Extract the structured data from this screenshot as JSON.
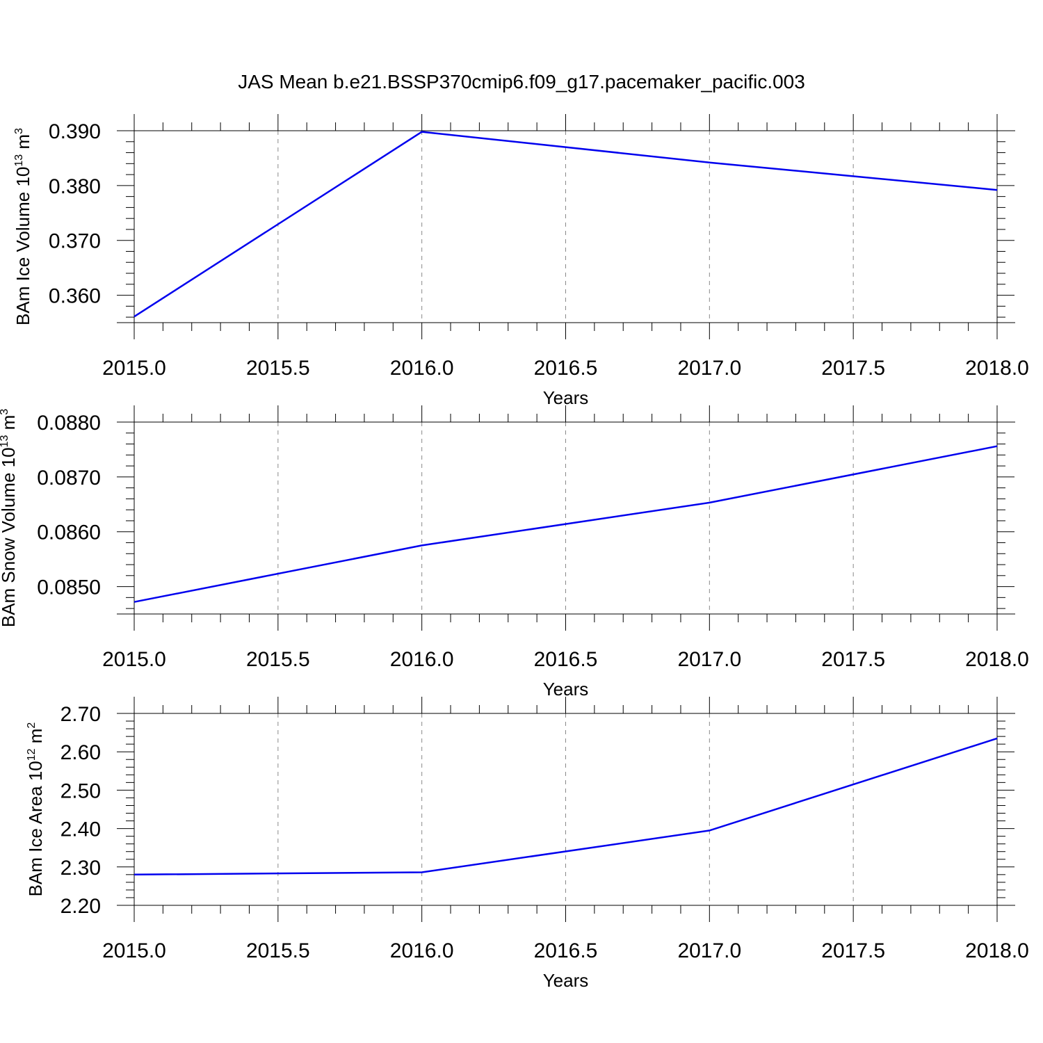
{
  "figure_title": "JAS Mean b.e21.BSSP370cmip6.f09_g17.pacemaker_pacific.003",
  "line_color": "#0000ee",
  "chart_data": [
    {
      "type": "line",
      "xlabel": "Years",
      "ylabel": {
        "text": "BAm Ice Volume 10",
        "exponent": "13",
        "unit": " m",
        "unit_exponent": "3"
      },
      "x": [
        2015,
        2016,
        2017,
        2018
      ],
      "series": [
        {
          "values": [
            0.3561,
            0.3898,
            0.3842,
            0.3792
          ]
        }
      ],
      "xlim": [
        2015,
        2018
      ],
      "ylim": [
        0.355,
        0.393
      ],
      "xticks": [
        "2015.0",
        "2015.5",
        "2016.0",
        "2016.5",
        "2017.0",
        "2017.5",
        "2018.0"
      ],
      "yticks": [
        "0.360",
        "0.370",
        "0.380",
        "0.390"
      ],
      "grid": "vertical dashed at major x ticks"
    },
    {
      "type": "line",
      "xlabel": "Years",
      "ylabel": {
        "text": "BAm Snow Volume 10",
        "exponent": "13",
        "unit": " m",
        "unit_exponent": "3"
      },
      "x": [
        2015,
        2016,
        2017,
        2018
      ],
      "series": [
        {
          "values": [
            0.08472,
            0.08575,
            0.08653,
            0.08756
          ]
        }
      ],
      "xlim": [
        2015,
        2018
      ],
      "ylim": [
        0.0845,
        0.0883
      ],
      "xticks": [
        "2015.0",
        "2015.5",
        "2016.0",
        "2016.5",
        "2017.0",
        "2017.5",
        "2018.0"
      ],
      "yticks": [
        "0.0850",
        "0.0860",
        "0.0870",
        "0.0880"
      ],
      "grid": "vertical dashed at major x ticks"
    },
    {
      "type": "line",
      "xlabel": "Years",
      "ylabel": {
        "text": "BAm Ice Area 10",
        "exponent": "12",
        "unit": " m",
        "unit_exponent": "2"
      },
      "x": [
        2015,
        2016,
        2017,
        2018
      ],
      "series": [
        {
          "values": [
            2.28,
            2.286,
            2.395,
            2.635
          ]
        }
      ],
      "xlim": [
        2015,
        2018
      ],
      "ylim": [
        2.2,
        2.745
      ],
      "xticks": [
        "2015.0",
        "2015.5",
        "2016.0",
        "2016.5",
        "2017.0",
        "2017.5",
        "2018.0"
      ],
      "yticks": [
        "2.20",
        "2.30",
        "2.40",
        "2.50",
        "2.60",
        "2.70"
      ],
      "grid": "vertical dashed at major x ticks"
    }
  ]
}
